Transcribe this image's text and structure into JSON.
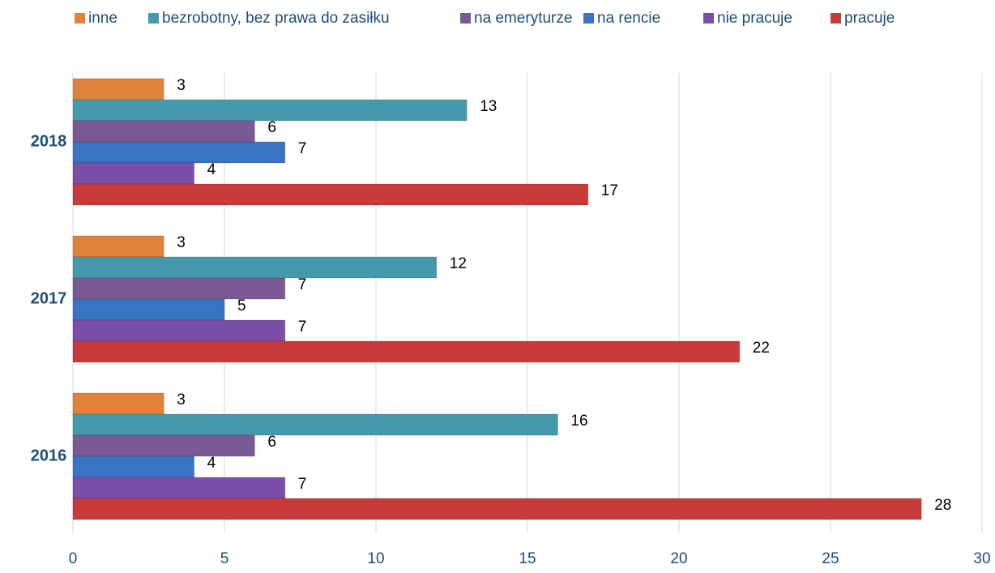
{
  "chart_data": {
    "type": "bar",
    "orientation": "horizontal",
    "categories": [
      "2016",
      "2017",
      "2018"
    ],
    "series": [
      {
        "name": "inne",
        "color": "#e0833a",
        "values": [
          3,
          3,
          3
        ]
      },
      {
        "name": "bezrobotny, bez prawa do zasiłku",
        "color": "#4699ad",
        "values": [
          16,
          12,
          13
        ]
      },
      {
        "name": "na emeryturze",
        "color": "#7a5a92",
        "values": [
          6,
          7,
          6
        ]
      },
      {
        "name": "na rencie",
        "color": "#3a73c1",
        "values": [
          4,
          5,
          7
        ]
      },
      {
        "name": "nie pracuje",
        "color": "#7b4fa8",
        "values": [
          7,
          7,
          4
        ]
      },
      {
        "name": "pracuje",
        "color": "#c73b3b",
        "values": [
          28,
          22,
          17
        ]
      }
    ],
    "xlim": [
      0,
      30
    ],
    "xticks": [
      0,
      5,
      10,
      15,
      20,
      25,
      30
    ],
    "grid": true,
    "legend": "top"
  }
}
